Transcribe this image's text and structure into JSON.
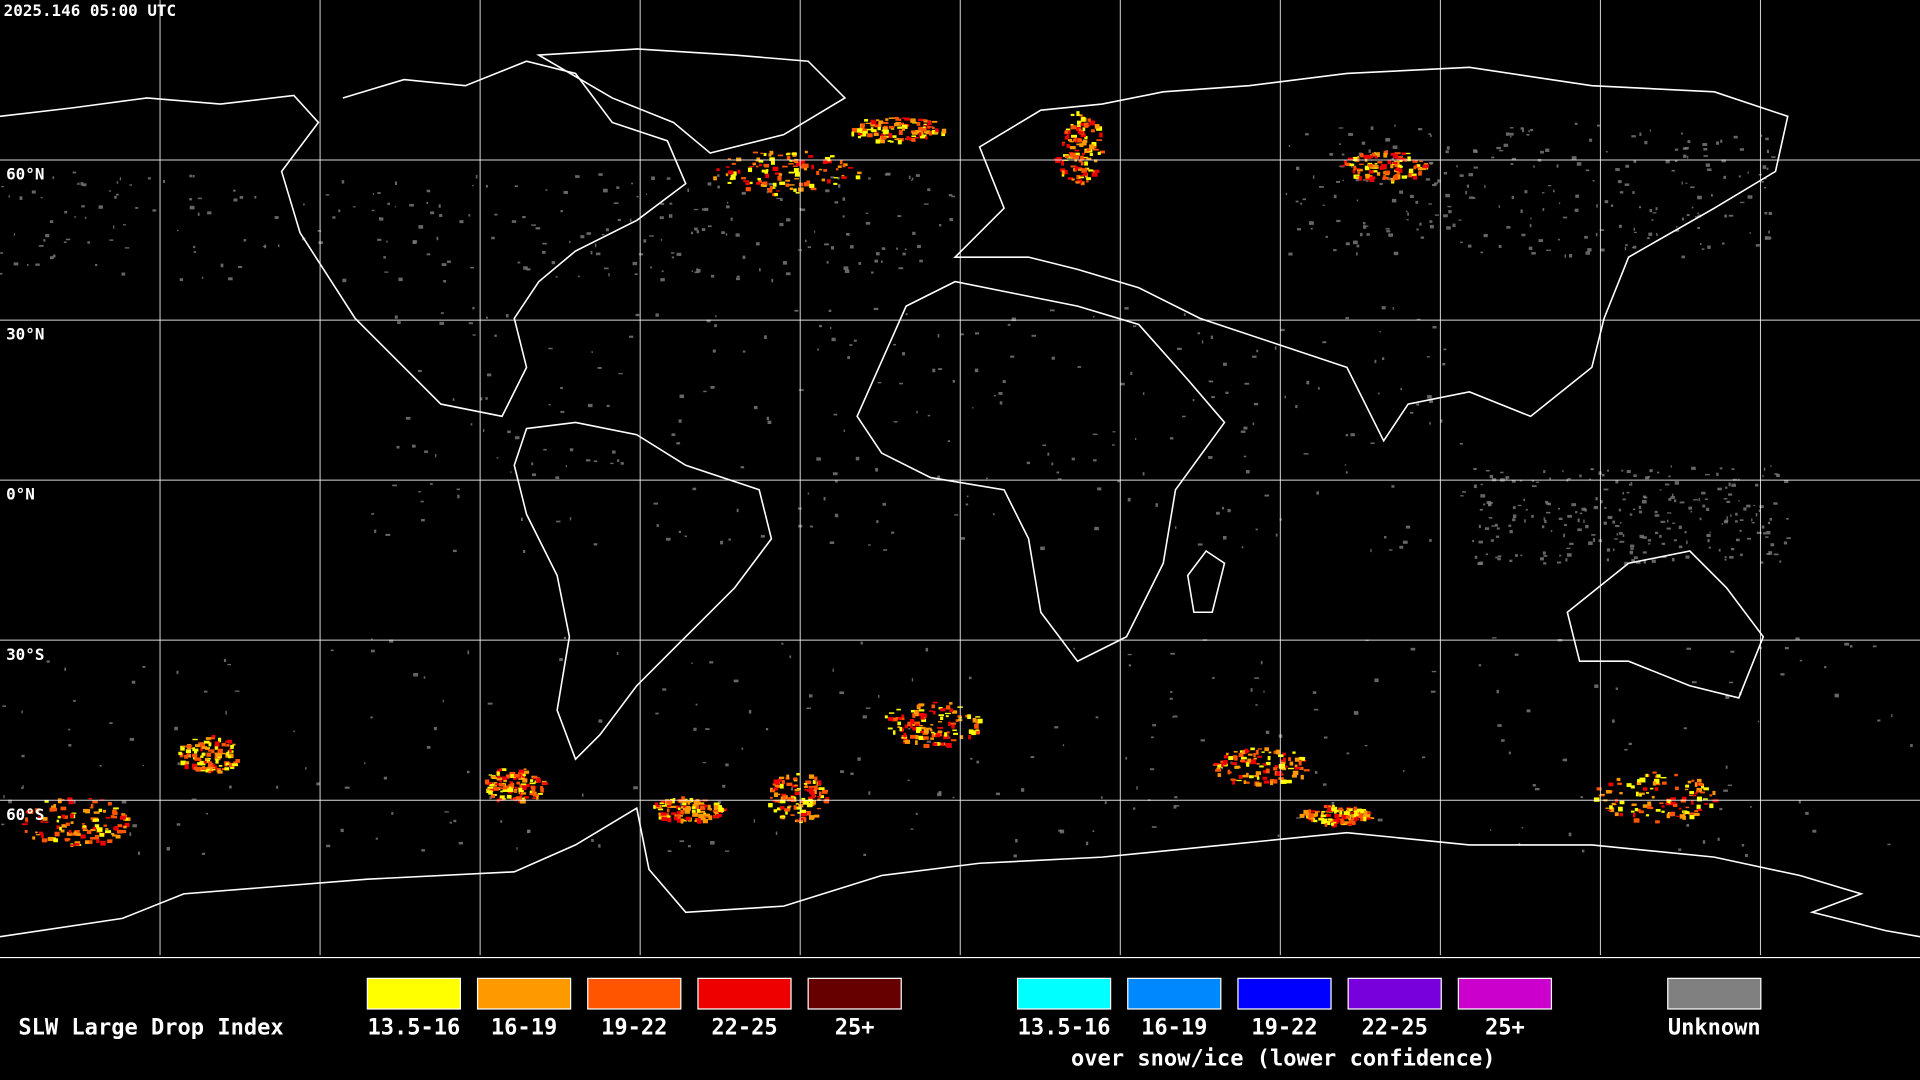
{
  "timestamp": "2025.146 05:00 UTC",
  "latitude_labels": [
    "60°N",
    "30°N",
    "0°N",
    "30°S",
    "60°S"
  ],
  "legend": {
    "title": "SLW Large Drop Index",
    "items": [
      {
        "label": "13.5-16",
        "color": "#ffff00"
      },
      {
        "label": "16-19",
        "color": "#ff9900"
      },
      {
        "label": "19-22",
        "color": "#ff5500"
      },
      {
        "label": "22-25",
        "color": "#ee0000"
      },
      {
        "label": "25+",
        "color": "#660000"
      }
    ],
    "snow_items": [
      {
        "label": "13.5-16",
        "color": "#00ffff"
      },
      {
        "label": "16-19",
        "color": "#0088ff"
      },
      {
        "label": "19-22",
        "color": "#0000ff"
      },
      {
        "label": "22-25",
        "color": "#7700dd"
      },
      {
        "label": "25+",
        "color": "#cc00cc"
      }
    ],
    "snow_caption": "over snow/ice (lower confidence)",
    "unknown": {
      "label": "Unknown",
      "color": "#808080"
    }
  }
}
